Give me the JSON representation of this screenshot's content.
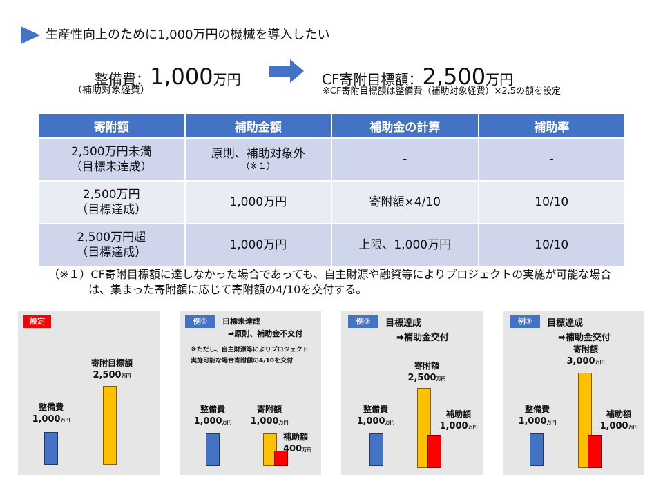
{
  "header": {
    "title": "生産性向上のために1,000万円の機械を導入したい",
    "cost_prefix": "整備費：",
    "cost_value": "1,000",
    "cost_unit": "万円",
    "cost_sub": "（補助対象経費）",
    "target_prefix": "CF寄附目標額：",
    "target_value": "2,500",
    "target_unit": "万円",
    "target_note": "※CF寄附目標額は整備費（補助対象経費）×2.5の額を設定"
  },
  "table": {
    "headers": [
      "寄附額",
      "補助金額",
      "補助金の計算",
      "補助率"
    ],
    "rows": [
      {
        "amount_l1": "2,500万円未満",
        "amount_l2": "（目標未達成）",
        "subsidy": "原則、補助対象外",
        "subsidy_note": "（※１）",
        "calc": "-",
        "rate": "-"
      },
      {
        "amount_l1": "2,500万円",
        "amount_l2": "（目標達成）",
        "subsidy": "1,000万円",
        "subsidy_note": "",
        "calc": "寄附額×4/10",
        "rate": "10/10"
      },
      {
        "amount_l1": "2,500万円超",
        "amount_l2": "（目標達成）",
        "subsidy": "1,000万円",
        "subsidy_note": "",
        "calc": "上限、1,000万円",
        "rate": "10/10"
      }
    ]
  },
  "footnote": {
    "line1": "（※１）CF寄附目標額に達しなかった場合であっても、自主財源や融資等によりプロジェクトの実施が可能な場合",
    "line2": "は、集まった寄附額に応じて寄附額の4/10を交付する。"
  },
  "panels": {
    "setting": {
      "tag": "設定",
      "tag_color": "#ff0000",
      "cost_label": "整備費",
      "cost_value": "1,000",
      "cost_unit": "万円",
      "target_label": "寄附目標額",
      "target_value": "2,500",
      "target_unit": "万円"
    },
    "ex1": {
      "tag": "例①",
      "tag_color": "#4472c4",
      "title1": "目標未達成",
      "title2": "➡原則、補助金不交付",
      "note1": "※ただし、自主財源等によりプロジェクト",
      "note2": "実施可能な場合寄附額の4/10を交付",
      "cost_label": "整備費",
      "cost_value": "1,000",
      "cost_unit": "万円",
      "don_label": "寄附額",
      "don_value": "1,000",
      "don_unit": "万円",
      "sub_label": "補助額",
      "sub_value": "400",
      "sub_unit": "万円"
    },
    "ex2": {
      "tag": "例②",
      "tag_color": "#4472c4",
      "title1": "目標達成",
      "title2": "➡補助金交付",
      "cost_label": "整備費",
      "cost_value": "1,000",
      "cost_unit": "万円",
      "don_label": "寄附額",
      "don_value": "2,500",
      "don_unit": "万円",
      "sub_label": "補助額",
      "sub_value": "1,000",
      "sub_unit": "万円"
    },
    "ex3": {
      "tag": "例③",
      "tag_color": "#4472c4",
      "title1": "目標達成",
      "title2": "➡補助金交付",
      "cost_label": "整備費",
      "cost_value": "1,000",
      "cost_unit": "万円",
      "don_label": "寄附額",
      "don_value": "3,000",
      "don_unit": "万円",
      "sub_label": "補助額",
      "sub_value": "1,000",
      "sub_unit": "万円"
    }
  },
  "colors": {
    "accent": "#4472c4",
    "yellow": "#ffc000",
    "red": "#ff0000",
    "panel": "#e7e6e6"
  }
}
